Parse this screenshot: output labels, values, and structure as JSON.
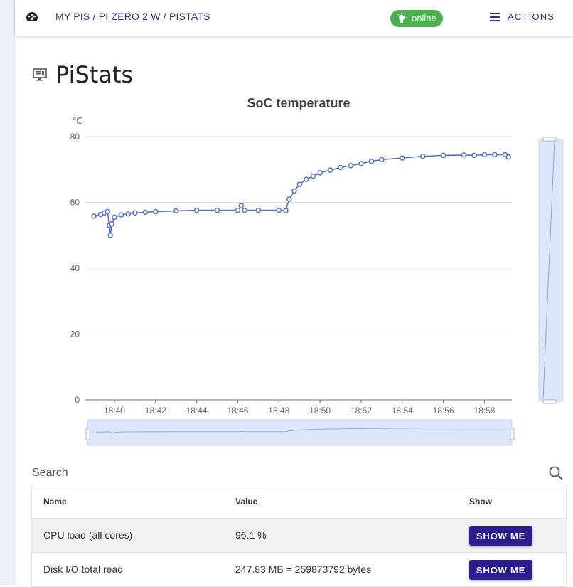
{
  "topbar": {
    "breadcrumb": [
      "MY PIS",
      "PI ZERO 2 W",
      "PISTATS"
    ],
    "separator": " / ",
    "status": "online",
    "status_color": "#4caf50",
    "actions_label": "ACTIONS",
    "icons": [
      "dashboard-icon",
      "lightbulb-icon",
      "menu-icon"
    ]
  },
  "page": {
    "title": "PiStats",
    "icon": "monitor-icon"
  },
  "chart_data": {
    "type": "line",
    "title": "SoC temperature",
    "ylabel": "°C",
    "xlabel": "",
    "ylim": [
      0,
      80
    ],
    "yticks": [
      0,
      20,
      40,
      60,
      80
    ],
    "xticks": [
      "18:40",
      "18:42",
      "18:44",
      "18:46",
      "18:48",
      "18:50",
      "18:52",
      "18:54",
      "18:56",
      "18:58"
    ],
    "x_unit": "time (HH:MM)",
    "grid": "horizontal",
    "legend": "none",
    "color": "#5470c6",
    "markers": "hollow circles",
    "series": [
      {
        "x": [
          "18:39:00",
          "18:39:20",
          "18:39:30",
          "18:39:40",
          "18:39:45",
          "18:39:48",
          "18:39:52",
          "18:40:00",
          "18:40:20",
          "18:40:40",
          "18:41:00",
          "18:41:30",
          "18:42:00",
          "18:43:00",
          "18:44:00",
          "18:45:00",
          "18:46:00",
          "18:46:10",
          "18:46:20",
          "18:47:00",
          "18:48:00",
          "18:48:20",
          "18:48:30",
          "18:48:45",
          "18:49:00",
          "18:49:20",
          "18:49:40",
          "18:50:00",
          "18:50:30",
          "18:51:00",
          "18:51:30",
          "18:52:00",
          "18:52:30",
          "18:53:00",
          "18:54:00",
          "18:55:00",
          "18:56:00",
          "18:57:00",
          "18:57:30",
          "18:58:00",
          "18:58:30",
          "18:59:00",
          "18:59:10"
        ],
        "values": [
          55.8,
          56.3,
          56.8,
          57.2,
          53.0,
          50.0,
          53.5,
          55.5,
          56.2,
          56.5,
          56.8,
          57.0,
          57.2,
          57.4,
          57.6,
          57.6,
          57.6,
          59.0,
          57.6,
          57.6,
          57.6,
          57.5,
          61.0,
          63.5,
          65.5,
          67.0,
          68.0,
          69.0,
          69.8,
          70.6,
          71.2,
          71.8,
          72.5,
          73.0,
          73.5,
          74.0,
          74.3,
          74.4,
          74.3,
          74.5,
          74.5,
          74.5,
          73.8
        ]
      }
    ],
    "zoom_slider": "active range covers full data"
  },
  "search": {
    "label": "Search",
    "icon": "search-icon"
  },
  "table": {
    "columns": [
      "Name",
      "Value",
      "Show"
    ],
    "rows": [
      {
        "name": "CPU load (all cores)",
        "value": "96.1 %",
        "button": "SHOW ME"
      },
      {
        "name": "Disk I/O total read",
        "value": "247.83 MB = 259873792 bytes",
        "button": "SHOW ME"
      }
    ]
  }
}
